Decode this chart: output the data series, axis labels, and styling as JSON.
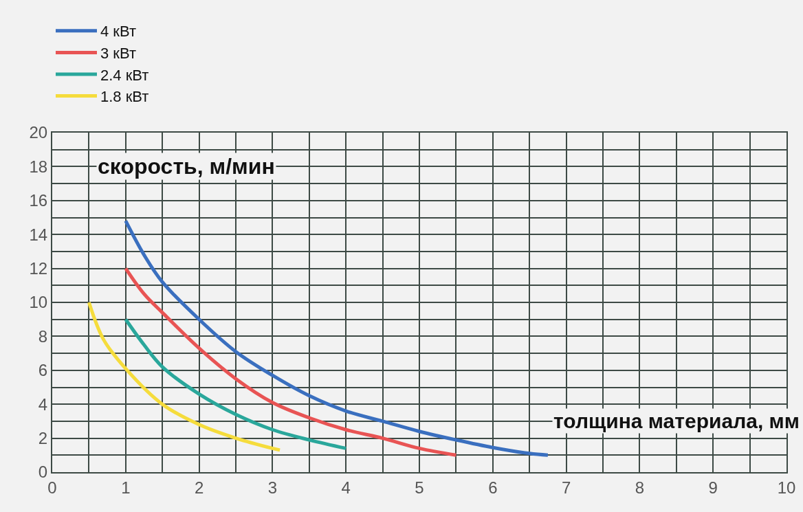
{
  "chart_data": {
    "type": "line",
    "xlabel": "толщина материала, мм",
    "ylabel": "скорость, м/мин",
    "xlim": [
      0,
      10
    ],
    "xticks": [
      0,
      1,
      2,
      3,
      4,
      5,
      6,
      7,
      8,
      9,
      10
    ],
    "ylim": [
      0,
      20
    ],
    "yticks": [
      0,
      2,
      4,
      6,
      8,
      10,
      12,
      14,
      16,
      18,
      20
    ],
    "grid": true,
    "legend": "top left",
    "marker": "none",
    "line_style": "solid",
    "series": [
      {
        "name": "4 кВт",
        "color": "#3a6fbf",
        "x": [
          1,
          1.25,
          1.5,
          2,
          2.5,
          3,
          3.5,
          4,
          4.5,
          5,
          5.5,
          6,
          6.5,
          6.75
        ],
        "values": [
          14.8,
          12.8,
          11.2,
          9.0,
          7.1,
          5.7,
          4.5,
          3.6,
          3.0,
          2.4,
          1.9,
          1.45,
          1.1,
          1.0
        ]
      },
      {
        "name": "3 кВт",
        "color": "#e85454",
        "x": [
          1,
          1.25,
          1.5,
          2,
          2.5,
          3,
          3.5,
          4,
          4.5,
          5,
          5.5
        ],
        "values": [
          12.0,
          10.5,
          9.4,
          7.3,
          5.5,
          4.1,
          3.2,
          2.5,
          2.0,
          1.4,
          1.0
        ]
      },
      {
        "name": "2.4 кВт",
        "color": "#2aa79b",
        "x": [
          1,
          1.25,
          1.5,
          2,
          2.5,
          3,
          3.5,
          4
        ],
        "values": [
          9.0,
          7.5,
          6.2,
          4.6,
          3.4,
          2.5,
          1.9,
          1.4
        ]
      },
      {
        "name": "1.8 кВт",
        "color": "#f5dc3c",
        "x": [
          0.5,
          0.7,
          1,
          1.5,
          2,
          2.5,
          3,
          3.1
        ],
        "values": [
          10.0,
          7.8,
          6.1,
          4.0,
          2.8,
          2.0,
          1.4,
          1.3
        ]
      }
    ]
  }
}
